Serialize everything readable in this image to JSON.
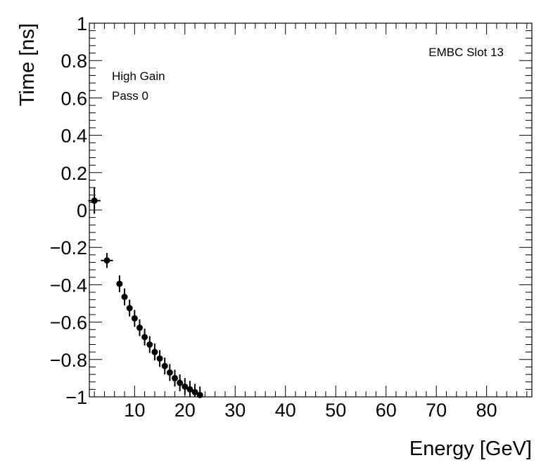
{
  "chart_data": {
    "type": "scatter",
    "title": "",
    "xlabel": "Energy [GeV]",
    "ylabel": "Time [ns]",
    "xlim": [
      1,
      89
    ],
    "ylim": [
      -1,
      1
    ],
    "x_ticks": [
      10,
      20,
      30,
      40,
      50,
      60,
      70,
      80
    ],
    "x_tick_labels": [
      "10",
      "20",
      "30",
      "40",
      "50",
      "60",
      "70",
      "80"
    ],
    "y_ticks": [
      1,
      0.8,
      0.6,
      0.4,
      0.2,
      0,
      -0.2,
      -0.4,
      -0.6,
      -0.8,
      -1
    ],
    "y_tick_labels": [
      "1",
      "0.8",
      "0.6",
      "0.4",
      "0.2",
      "0",
      "−0.2",
      "−0.4",
      "−0.6",
      "−0.8",
      "−1"
    ],
    "annotations": {
      "top_right": "EMBC Slot 13",
      "top_left_line1": "High Gain",
      "top_left_line2": "Pass 0"
    },
    "series": [
      {
        "name": "High Gain Pass 0",
        "points": [
          {
            "x": 2.0,
            "y": 0.05,
            "xerr": 1.2,
            "yerr": 0.07
          },
          {
            "x": 4.5,
            "y": -0.27,
            "xerr": 1.2,
            "yerr": 0.04
          },
          {
            "x": 7.0,
            "y": -0.395,
            "xerr": 0,
            "yerr": 0.045
          },
          {
            "x": 8.0,
            "y": -0.465,
            "xerr": 0,
            "yerr": 0.045
          },
          {
            "x": 9.0,
            "y": -0.525,
            "xerr": 0,
            "yerr": 0.045
          },
          {
            "x": 10.0,
            "y": -0.58,
            "xerr": 0,
            "yerr": 0.045
          },
          {
            "x": 11.0,
            "y": -0.63,
            "xerr": 0,
            "yerr": 0.045
          },
          {
            "x": 12.0,
            "y": -0.68,
            "xerr": 0,
            "yerr": 0.045
          },
          {
            "x": 13.0,
            "y": -0.72,
            "xerr": 0,
            "yerr": 0.045
          },
          {
            "x": 14.0,
            "y": -0.76,
            "xerr": 0,
            "yerr": 0.045
          },
          {
            "x": 15.0,
            "y": -0.795,
            "xerr": 0,
            "yerr": 0.045
          },
          {
            "x": 16.0,
            "y": -0.835,
            "xerr": 0,
            "yerr": 0.045
          },
          {
            "x": 17.0,
            "y": -0.87,
            "xerr": 0,
            "yerr": 0.045
          },
          {
            "x": 18.0,
            "y": -0.9,
            "xerr": 0,
            "yerr": 0.045
          },
          {
            "x": 19.0,
            "y": -0.925,
            "xerr": 0,
            "yerr": 0.045
          },
          {
            "x": 20.0,
            "y": -0.945,
            "xerr": 0,
            "yerr": 0.045
          },
          {
            "x": 21.0,
            "y": -0.96,
            "xerr": 0,
            "yerr": 0.045
          },
          {
            "x": 22.0,
            "y": -0.975,
            "xerr": 0,
            "yerr": 0.045
          },
          {
            "x": 23.0,
            "y": -0.99,
            "xerr": 0,
            "yerr": 0.045
          }
        ]
      }
    ],
    "grid": false,
    "colors": {
      "marker": "#000000",
      "axis": "#000000",
      "background": "#ffffff"
    }
  }
}
